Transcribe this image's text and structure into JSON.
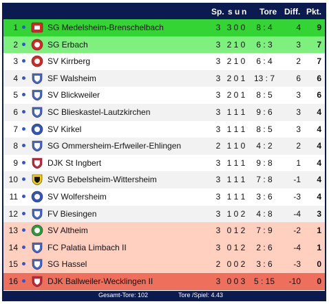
{
  "colors": {
    "header_bg": "#0b1a4f",
    "green_dark": "#33d433",
    "green_light": "#7ef07e",
    "white": "#ffffff",
    "light_gray": "#f2f2f2",
    "salmon": "#ffcfbf",
    "red": "#ee6f5b"
  },
  "header": {
    "sp": "Sp.",
    "s": "s",
    "u": "u",
    "n": "n",
    "tore": "Tore",
    "diff": "Diff.",
    "pkt": "Pkt."
  },
  "rows": [
    {
      "rank": "1",
      "team": "SG Medelsheim-Brenschelbach",
      "sp": "3",
      "s": "3",
      "u": "0",
      "n": "0",
      "tore": "8 : 4",
      "diff": "4",
      "pkt": "9",
      "bg": "#33d433",
      "crest": "red-square-crest"
    },
    {
      "rank": "2",
      "team": "SG Erbach",
      "sp": "3",
      "s": "2",
      "u": "1",
      "n": "0",
      "tore": "6 : 3",
      "diff": "3",
      "pkt": "7",
      "bg": "#7ef07e",
      "crest": "red-round-crest"
    },
    {
      "rank": "3",
      "team": "SV Kirrberg",
      "sp": "3",
      "s": "2",
      "u": "1",
      "n": "0",
      "tore": "6 : 4",
      "diff": "2",
      "pkt": "7",
      "bg": "#ffffff",
      "crest": "red-round-crest"
    },
    {
      "rank": "4",
      "team": "SF Walsheim",
      "sp": "3",
      "s": "2",
      "u": "0",
      "n": "1",
      "tore": "13 : 7",
      "diff": "6",
      "pkt": "6",
      "bg": "#f2f2f2",
      "crest": "blue-shield-crest"
    },
    {
      "rank": "5",
      "team": "SV Blickweiler",
      "sp": "3",
      "s": "2",
      "u": "0",
      "n": "1",
      "tore": "8 : 5",
      "diff": "3",
      "pkt": "6",
      "bg": "#ffffff",
      "crest": "blue-shield-crest"
    },
    {
      "rank": "6",
      "team": "SC Blieskastel-Lautzkirchen",
      "sp": "3",
      "s": "1",
      "u": "1",
      "n": "1",
      "tore": "9 : 6",
      "diff": "3",
      "pkt": "4",
      "bg": "#f2f2f2",
      "crest": "blue-shield-crest"
    },
    {
      "rank": "7",
      "team": "SV Kirkel",
      "sp": "3",
      "s": "1",
      "u": "1",
      "n": "1",
      "tore": "8 : 5",
      "diff": "3",
      "pkt": "4",
      "bg": "#ffffff",
      "crest": "blue-round-crest"
    },
    {
      "rank": "8",
      "team": "SG Ommersheim-Erfweiler-Ehlingen",
      "sp": "2",
      "s": "1",
      "u": "1",
      "n": "0",
      "tore": "4 : 2",
      "diff": "2",
      "pkt": "4",
      "bg": "#f2f2f2",
      "crest": "blue-shield-crest"
    },
    {
      "rank": "9",
      "team": "DJK St Ingbert",
      "sp": "3",
      "s": "1",
      "u": "1",
      "n": "1",
      "tore": "9 : 8",
      "diff": "1",
      "pkt": "4",
      "bg": "#ffffff",
      "crest": "red-shield-crest"
    },
    {
      "rank": "10",
      "team": "SVG Bebelsheim-Wittersheim",
      "sp": "3",
      "s": "1",
      "u": "1",
      "n": "1",
      "tore": "7 : 8",
      "diff": "-1",
      "pkt": "4",
      "bg": "#f2f2f2",
      "crest": "yellow-black-crest"
    },
    {
      "rank": "11",
      "team": "SV Wolfersheim",
      "sp": "3",
      "s": "1",
      "u": "1",
      "n": "1",
      "tore": "3 : 6",
      "diff": "-3",
      "pkt": "4",
      "bg": "#ffffff",
      "crest": "blue-round-crest"
    },
    {
      "rank": "12",
      "team": "FV Biesingen",
      "sp": "3",
      "s": "1",
      "u": "0",
      "n": "2",
      "tore": "4 : 8",
      "diff": "-4",
      "pkt": "3",
      "bg": "#f2f2f2",
      "crest": "blue-shield-crest"
    },
    {
      "rank": "13",
      "team": "SV Altheim",
      "sp": "3",
      "s": "0",
      "u": "1",
      "n": "2",
      "tore": "7 : 9",
      "diff": "-2",
      "pkt": "1",
      "bg": "#ffcfbf",
      "crest": "green-round-crest"
    },
    {
      "rank": "14",
      "team": "FC Palatia Limbach II",
      "sp": "3",
      "s": "0",
      "u": "1",
      "n": "2",
      "tore": "2 : 6",
      "diff": "-4",
      "pkt": "1",
      "bg": "#ffcfbf",
      "crest": "blue-shield-crest"
    },
    {
      "rank": "15",
      "team": "SG Hassel",
      "sp": "2",
      "s": "0",
      "u": "0",
      "n": "2",
      "tore": "3 : 6",
      "diff": "-3",
      "pkt": "0",
      "bg": "#ffcfbf",
      "crest": "blue-shield-crest"
    },
    {
      "rank": "16",
      "team": "DJK Ballweiler-Wecklingen II",
      "sp": "3",
      "s": "0",
      "u": "0",
      "n": "3",
      "tore": "5 : 15",
      "diff": "-10",
      "pkt": "0",
      "bg": "#ee6f5b",
      "crest": "red-shield-crest"
    }
  ],
  "footer": {
    "gesamt": "Gesamt-Tore: 102",
    "tore_spiel": "Tore /Spiel: 4.43"
  }
}
